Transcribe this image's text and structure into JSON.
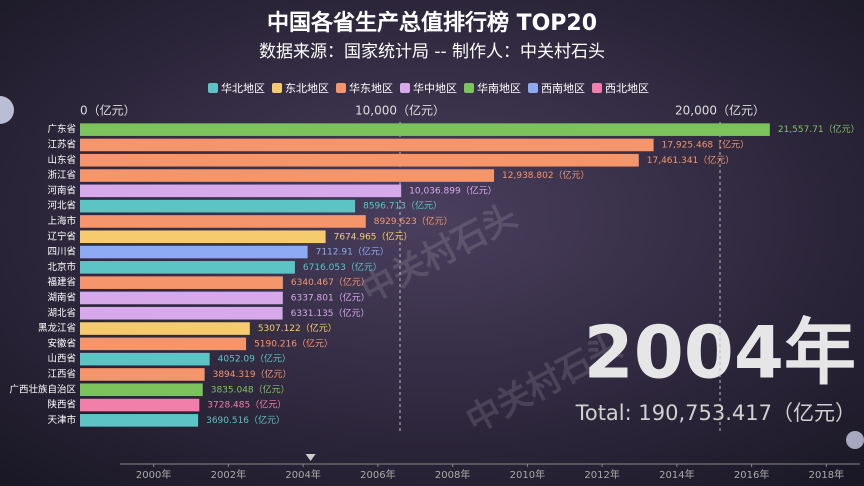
{
  "chart_data": {
    "type": "bar",
    "orientation": "horizontal",
    "title": "中国各省生产总值排行榜 TOP20",
    "subtitle": "数据来源：国家统计局 -- 制作人：中关村石头",
    "legend": [
      {
        "name": "华北地区",
        "color": "#5cc4c4"
      },
      {
        "name": "东北地区",
        "color": "#f6cb6e"
      },
      {
        "name": "华东地区",
        "color": "#f4956c"
      },
      {
        "name": "华中地区",
        "color": "#d7a8ea"
      },
      {
        "name": "华南地区",
        "color": "#7dc35c"
      },
      {
        "name": "西南地区",
        "color": "#8eaaf2"
      },
      {
        "name": "西北地区",
        "color": "#f27eaa"
      }
    ],
    "categories": [
      "广东省",
      "江苏省",
      "山东省",
      "浙江省",
      "河南省",
      "河北省",
      "上海市",
      "辽宁省",
      "四川省",
      "北京市",
      "福建省",
      "湖南省",
      "湖北省",
      "黑龙江省",
      "安徽省",
      "山西省",
      "江西省",
      "广西壮族自治区",
      "陕西省",
      "天津市"
    ],
    "groups": [
      "华南地区",
      "华东地区",
      "华东地区",
      "华东地区",
      "华中地区",
      "华北地区",
      "华东地区",
      "东北地区",
      "西南地区",
      "华北地区",
      "华东地区",
      "华中地区",
      "华中地区",
      "东北地区",
      "华东地区",
      "华北地区",
      "华东地区",
      "华南地区",
      "西北地区",
      "华北地区"
    ],
    "values": [
      21557.71,
      17925.468,
      17461.341,
      12938.802,
      10036.899,
      8596.713,
      8929.623,
      7674.965,
      7112.91,
      6716.053,
      6340.467,
      6337.801,
      6331.135,
      5307.122,
      5190.216,
      4052.09,
      3894.319,
      3835.048,
      3728.485,
      3690.516
    ],
    "value_labels": [
      "21,557.71（亿元）",
      "17,925.468（亿元）",
      "17,461.341（亿元）",
      "12,938.802（亿元）",
      "10,036.899（亿元）",
      "8596.713（亿元）",
      "8929.623（亿元）",
      "7674.965（亿元）",
      "7112.91（亿元）",
      "6716.053（亿元）",
      "6340.467（亿元）",
      "6337.801（亿元）",
      "6331.135（亿元）",
      "5307.122（亿元）",
      "5190.216（亿元）",
      "4052.09（亿元）",
      "3894.319（亿元）",
      "3835.048（亿元）",
      "3728.485（亿元）",
      "3690.516（亿元）"
    ],
    "xlim": [
      0,
      22000
    ],
    "xticks": [
      {
        "value": 0,
        "label": "0（亿元）"
      },
      {
        "value": 10000,
        "label": "10,000（亿元）"
      },
      {
        "value": 20000,
        "label": "20,000（亿元）"
      }
    ],
    "grid": true,
    "year": "2004年",
    "total": "Total: 190,753.417（亿元）"
  },
  "timeline": {
    "xlim": [
      1999.1,
      2018.9
    ],
    "xticks": [
      {
        "value": 2000,
        "label": "2000年"
      },
      {
        "value": 2002,
        "label": "2002年"
      },
      {
        "value": 2004,
        "label": "2004年"
      },
      {
        "value": 2006,
        "label": "2006年"
      },
      {
        "value": 2008,
        "label": "2008年"
      },
      {
        "value": 2010,
        "label": "2010年"
      },
      {
        "value": 2012,
        "label": "2012年"
      },
      {
        "value": 2014,
        "label": "2014年"
      },
      {
        "value": 2016,
        "label": "2016年"
      },
      {
        "value": 2018,
        "label": "2018年"
      }
    ],
    "current": 2004.2
  },
  "watermark": "中关村石头"
}
